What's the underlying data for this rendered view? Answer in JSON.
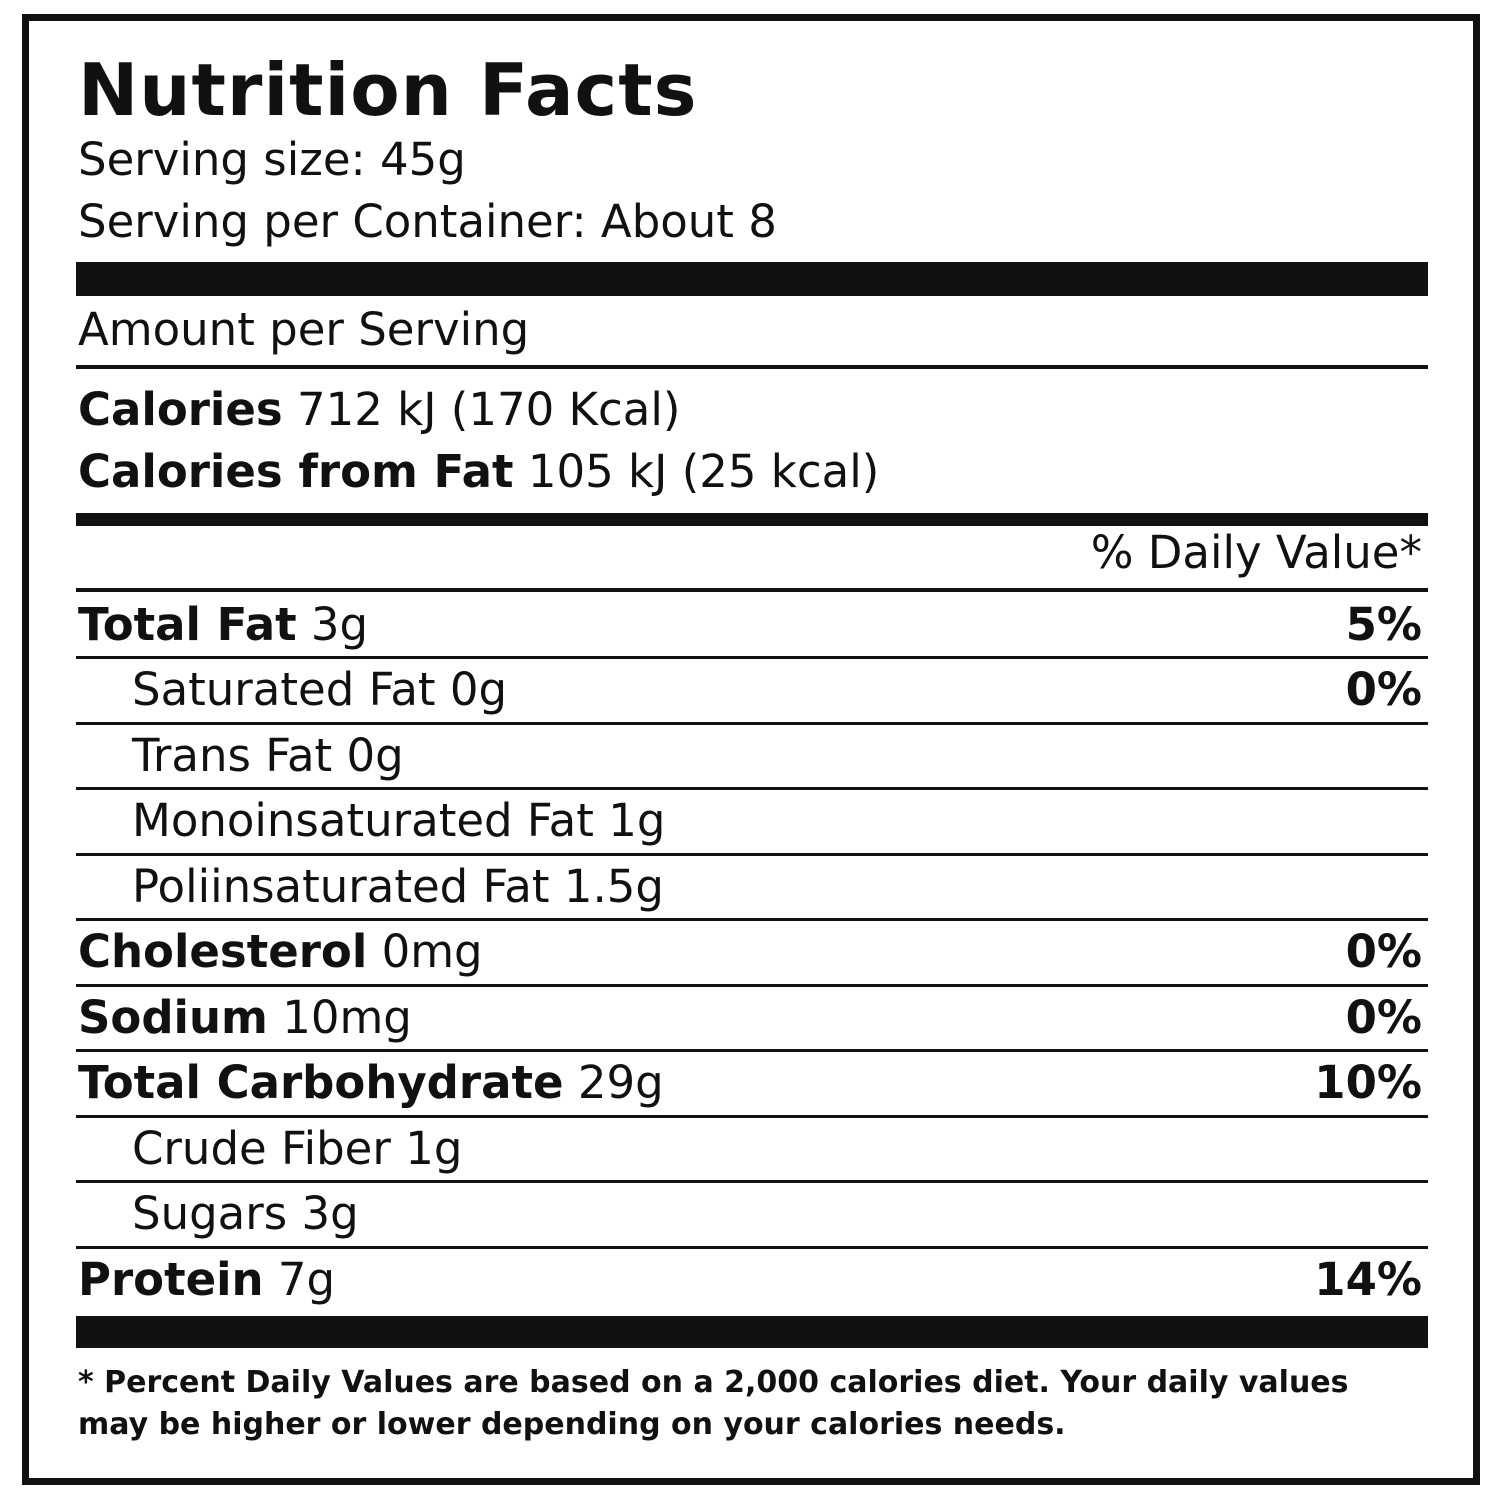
{
  "title": "Nutrition Facts",
  "serving_size": "Serving size: 45g",
  "servings_per_container": "Serving per Container: About 8",
  "amount_per_serving": "Amount per Serving",
  "calories": {
    "label": "Calories",
    "value": "712 kJ (170 Kcal)"
  },
  "calories_from_fat": {
    "label": "Calories from Fat",
    "value": "105 kJ (25 kcal)"
  },
  "daily_value_header": "% Daily Value*",
  "nutrients": [
    {
      "name": "Total Fat",
      "amount": "3g",
      "daily_value": "5%"
    },
    {
      "name": "Saturated Fat",
      "amount": "0g",
      "daily_value": "0%"
    },
    {
      "name": "Trans Fat",
      "amount": "0g"
    },
    {
      "name": "Monoinsaturated Fat",
      "amount": "1g"
    },
    {
      "name": "Poliinsaturated Fat",
      "amount": "1.5g"
    },
    {
      "name": "Cholesterol",
      "amount": "0mg",
      "daily_value": "0%"
    },
    {
      "name": "Sodium",
      "amount": "10mg",
      "daily_value": "0%"
    },
    {
      "name": "Total Carbohydrate",
      "amount": "29g",
      "daily_value": "10%"
    },
    {
      "name": "Crude Fiber",
      "amount": "1g"
    },
    {
      "name": "Sugars",
      "amount": "3g"
    },
    {
      "name": "Protein",
      "amount": "7g",
      "daily_value": "14%"
    }
  ],
  "footnote": "* Percent Daily Values are based on a 2,000 calories diet. Your daily values may be higher or lower depending on your calories needs."
}
